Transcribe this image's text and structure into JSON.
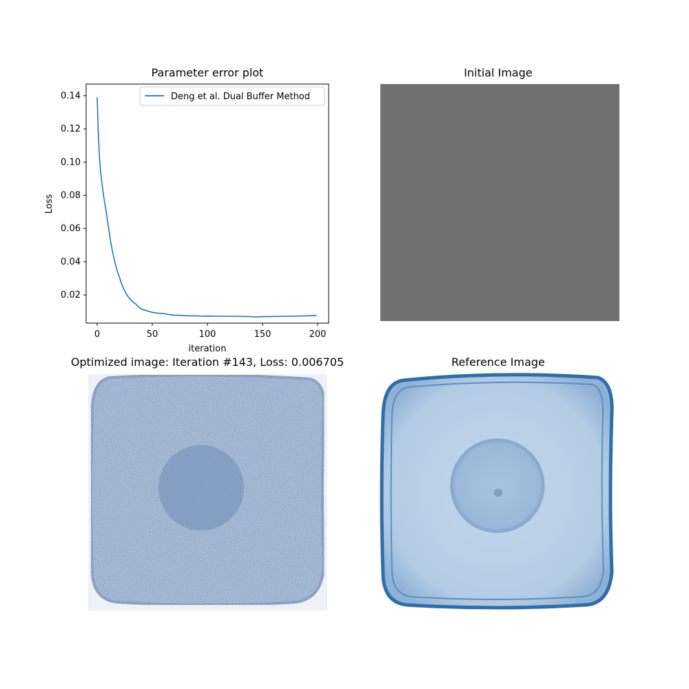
{
  "figure": {
    "top_left_title": "Parameter error plot",
    "top_right_title": "Initial Image",
    "bottom_left_title": "Optimized image: Iteration #143, Loss: 0.006705",
    "bottom_right_title": "Reference Image"
  },
  "chart_data": {
    "type": "line",
    "title": "Parameter error plot",
    "xlabel": "iteration",
    "ylabel": "Loss",
    "xlim": [
      -10,
      210
    ],
    "ylim": [
      0.003,
      0.147
    ],
    "xticks": [
      0,
      50,
      100,
      150,
      200
    ],
    "yticks": [
      0.02,
      0.04,
      0.06,
      0.08,
      0.1,
      0.12,
      0.14
    ],
    "ytick_labels": [
      "0.02",
      "0.04",
      "0.06",
      "0.08",
      "0.10",
      "0.12",
      "0.14"
    ],
    "xtick_labels": [
      "0",
      "50",
      "100",
      "150",
      "200"
    ],
    "grid": false,
    "legend_position": "top-right",
    "series": [
      {
        "name": "Deng et al. Dual Buffer Method",
        "color": "#1f77b4",
        "x": [
          0,
          1,
          2,
          3,
          4,
          5,
          6,
          8,
          10,
          12,
          14,
          16,
          18,
          20,
          22,
          24,
          26,
          28,
          30,
          32,
          35,
          38,
          40,
          45,
          50,
          55,
          60,
          65,
          70,
          75,
          80,
          85,
          90,
          95,
          100,
          110,
          120,
          130,
          140,
          143,
          150,
          160,
          170,
          180,
          190,
          199
        ],
        "y": [
          0.139,
          0.118,
          0.104,
          0.095,
          0.089,
          0.084,
          0.079,
          0.071,
          0.062,
          0.053,
          0.046,
          0.04,
          0.035,
          0.031,
          0.027,
          0.024,
          0.021,
          0.019,
          0.0175,
          0.016,
          0.0145,
          0.0125,
          0.0115,
          0.0105,
          0.0095,
          0.009,
          0.0088,
          0.0082,
          0.0078,
          0.0077,
          0.0075,
          0.0074,
          0.0074,
          0.0072,
          0.0073,
          0.0072,
          0.0071,
          0.0071,
          0.0069,
          0.0067,
          0.0069,
          0.007,
          0.0071,
          0.0072,
          0.0074,
          0.0076
        ]
      }
    ]
  },
  "colors": {
    "initial_gray": "#707070",
    "cap_blue_light": "#b8cfe6",
    "cap_blue_mid": "#7fa6cf",
    "cap_blue_dark": "#2f6ea8"
  }
}
